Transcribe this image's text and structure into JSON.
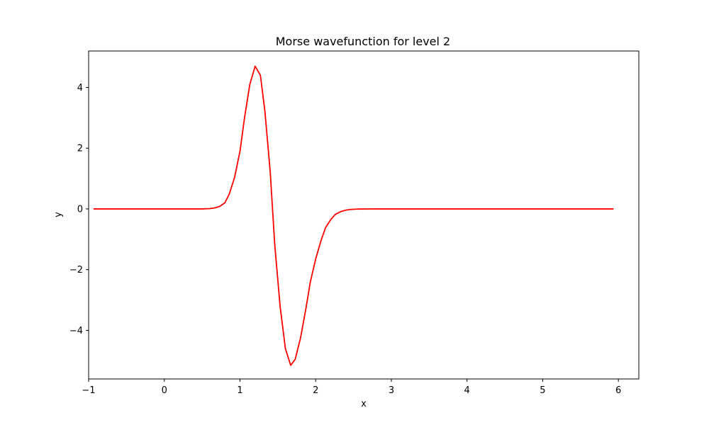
{
  "chart_data": {
    "type": "line",
    "title": "Morse wavefunction for level 2",
    "xlabel": "x",
    "ylabel": "y",
    "xlim": [
      -1.0,
      6.27
    ],
    "ylim": [
      -5.6,
      5.2
    ],
    "xticks": [
      -1,
      0,
      1,
      2,
      3,
      4,
      5,
      6
    ],
    "yticks": [
      -4,
      -2,
      0,
      2,
      4
    ],
    "xtick_labels": [
      "−1",
      "0",
      "1",
      "2",
      "3",
      "4",
      "5",
      "6"
    ],
    "ytick_labels": [
      "−4",
      "−2",
      "0",
      "2",
      "4"
    ],
    "grid": false,
    "legend": "none",
    "series": [
      {
        "color": "#ff0000",
        "x": [
          -0.93,
          -0.5,
          0.0,
          0.3,
          0.5,
          0.6,
          0.66,
          0.73,
          0.8,
          0.86,
          0.93,
          1.0,
          1.06,
          1.13,
          1.2,
          1.27,
          1.33,
          1.4,
          1.46,
          1.53,
          1.6,
          1.67,
          1.73,
          1.8,
          1.87,
          1.93,
          2.0,
          2.07,
          2.13,
          2.2,
          2.26,
          2.33,
          2.4,
          2.46,
          2.53,
          2.6,
          2.7,
          2.8,
          3.0,
          3.5,
          4.0,
          5.0,
          5.93
        ],
        "y": [
          0,
          0,
          0,
          0,
          0,
          0.01,
          0.03,
          0.08,
          0.2,
          0.5,
          1.05,
          1.9,
          3.0,
          4.1,
          4.7,
          4.4,
          3.2,
          1.2,
          -1.2,
          -3.2,
          -4.6,
          -5.15,
          -4.95,
          -4.25,
          -3.3,
          -2.4,
          -1.65,
          -1.05,
          -0.62,
          -0.35,
          -0.18,
          -0.09,
          -0.04,
          -0.02,
          -0.008,
          -0.003,
          -0.001,
          0,
          0,
          0,
          0,
          0,
          0
        ]
      }
    ]
  }
}
